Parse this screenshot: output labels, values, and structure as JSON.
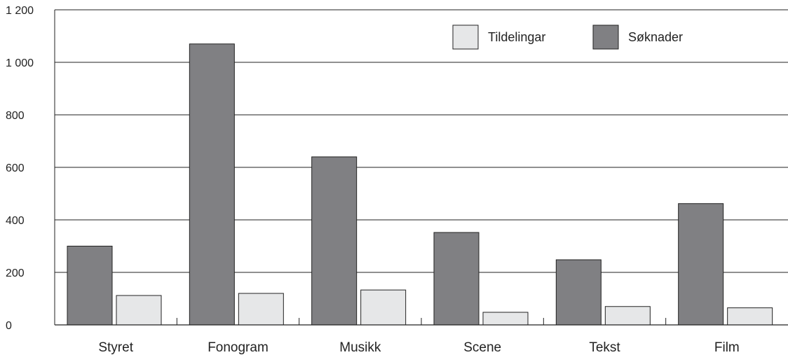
{
  "chart_data": {
    "type": "bar",
    "categories": [
      "Styret",
      "Fonogram",
      "Musikk",
      "Scene",
      "Tekst",
      "Film"
    ],
    "series": [
      {
        "name": "Søknader",
        "values": [
          300,
          1070,
          640,
          352,
          248,
          462
        ],
        "color": "#808083"
      },
      {
        "name": "Tildelingar",
        "values": [
          112,
          120,
          133,
          48,
          70,
          65
        ],
        "color": "#e6e7e8"
      }
    ],
    "ylim": [
      0,
      1200
    ],
    "yticks": [
      0,
      200,
      400,
      600,
      800,
      1000,
      1200
    ],
    "ytick_labels": [
      "0",
      "200",
      "400",
      "600",
      "800",
      "1 000",
      "1 200"
    ],
    "grid": true,
    "legend_position": "top-right",
    "legend_order": [
      "Tildelingar",
      "Søknader"
    ],
    "title": "",
    "xlabel": "",
    "ylabel": ""
  }
}
